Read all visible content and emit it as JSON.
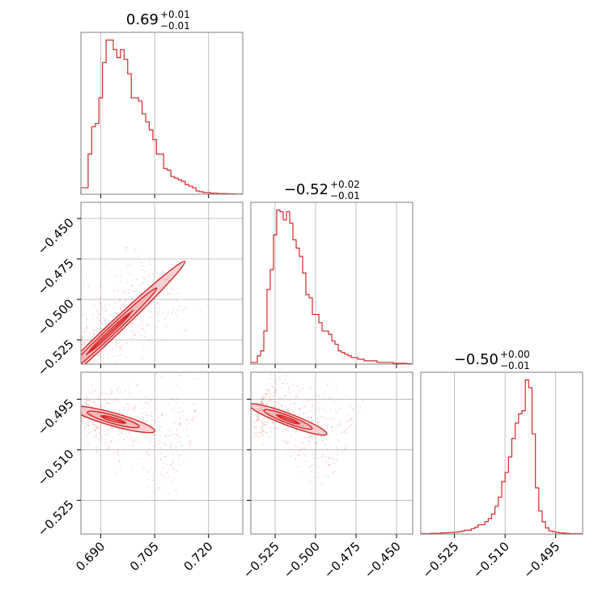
{
  "accent_color": "#d62728",
  "shade_color": "#f2a3a5",
  "chart_data": {
    "type": "corner",
    "grid": true,
    "parameters": [
      {
        "title": {
          "median": "0.69",
          "plus": "+0.01",
          "minus": "−0.01"
        },
        "range": [
          0.6845,
          0.7295
        ],
        "ticks": [
          0.69,
          0.705,
          0.72
        ],
        "tick_labels": [
          "0.690",
          "0.705",
          "0.720"
        ],
        "hist_bins": [
          0.6845,
          0.6855,
          0.6865,
          0.6875,
          0.6885,
          0.6895,
          0.6905,
          0.6915,
          0.6925,
          0.6935,
          0.6945,
          0.6955,
          0.6965,
          0.6975,
          0.6985,
          0.6995,
          0.7005,
          0.7015,
          0.7025,
          0.7035,
          0.7045,
          0.7055,
          0.7065,
          0.7075,
          0.7085,
          0.7095,
          0.7105,
          0.7115,
          0.7125,
          0.7135,
          0.7145,
          0.7155,
          0.7165,
          0.7175,
          0.7185,
          0.7195,
          0.7205,
          0.7215,
          0.7225,
          0.7235,
          0.7245,
          0.7255,
          0.7265,
          0.7275,
          0.7285,
          0.7295
        ],
        "hist_counts": [
          4,
          4,
          25,
          42,
          44,
          60,
          82,
          96,
          96,
          90,
          85,
          90,
          84,
          75,
          60,
          60,
          58,
          50,
          45,
          40,
          34,
          25,
          25,
          16,
          15,
          11,
          10,
          9,
          8,
          6,
          5,
          4,
          2,
          1.5,
          1,
          1,
          0.6,
          0.6,
          0.4,
          0.4,
          0.3,
          0.2,
          0.2,
          0.1,
          0.1
        ]
      },
      {
        "title": {
          "median": "−0.52",
          "plus": "+0.02",
          "minus": "−0.01"
        },
        "range": [
          -0.54,
          -0.44
        ],
        "ticks": [
          -0.45,
          -0.475,
          -0.5,
          -0.525
        ],
        "tick_labels": [
          "−0.450",
          "−0.475",
          "−0.500",
          "−0.525"
        ],
        "hist_bins": [
          -0.54,
          -0.538,
          -0.536,
          -0.534,
          -0.532,
          -0.53,
          -0.528,
          -0.526,
          -0.524,
          -0.522,
          -0.52,
          -0.518,
          -0.516,
          -0.514,
          -0.512,
          -0.51,
          -0.508,
          -0.506,
          -0.504,
          -0.502,
          -0.5,
          -0.498,
          -0.496,
          -0.494,
          -0.492,
          -0.49,
          -0.488,
          -0.486,
          -0.484,
          -0.482,
          -0.48,
          -0.478,
          -0.476,
          -0.474,
          -0.472,
          -0.47,
          -0.468,
          -0.466,
          -0.464,
          -0.462,
          -0.46,
          -0.458,
          -0.456,
          -0.454,
          -0.452,
          -0.45,
          -0.448,
          -0.446,
          -0.444,
          -0.442,
          -0.44
        ],
        "hist_counts": [
          1,
          1,
          5,
          8,
          20,
          45,
          57,
          78,
          93,
          92,
          87,
          92,
          85,
          75,
          70,
          65,
          55,
          42,
          40,
          30,
          30,
          25,
          20,
          20,
          18,
          14,
          12,
          8,
          7,
          6,
          5,
          4,
          4,
          3,
          3,
          2,
          2,
          2,
          2,
          1,
          1,
          1,
          1,
          1,
          0.5,
          0.5,
          0.5,
          0.5,
          0.3,
          0.2
        ]
      },
      {
        "title": {
          "median": "−0.50",
          "plus": "+0.00",
          "minus": "−0.01"
        },
        "range": [
          -0.535,
          -0.487
        ],
        "ticks": [
          -0.525,
          -0.51,
          -0.495
        ],
        "tick_labels": [
          "−0.525",
          "−0.510",
          "−0.495"
        ],
        "hist_bins": [
          -0.535,
          -0.534,
          -0.533,
          -0.532,
          -0.531,
          -0.53,
          -0.529,
          -0.528,
          -0.527,
          -0.526,
          -0.525,
          -0.524,
          -0.523,
          -0.522,
          -0.521,
          -0.52,
          -0.519,
          -0.518,
          -0.517,
          -0.516,
          -0.515,
          -0.514,
          -0.513,
          -0.512,
          -0.511,
          -0.51,
          -0.509,
          -0.508,
          -0.507,
          -0.506,
          -0.505,
          -0.504,
          -0.503,
          -0.502,
          -0.501,
          -0.5,
          -0.499,
          -0.498,
          -0.497,
          -0.496,
          -0.495,
          -0.494,
          -0.493,
          -0.492,
          -0.491,
          -0.49,
          -0.489,
          -0.488,
          -0.487
        ],
        "hist_counts": [
          0.3,
          0.3,
          0.3,
          0.5,
          0.5,
          0.5,
          0.8,
          0.8,
          1.0,
          1.0,
          1.2,
          1.5,
          2.0,
          2.5,
          2.5,
          3.5,
          4.5,
          6,
          6,
          8,
          10,
          13,
          18,
          24,
          34,
          40,
          50,
          62,
          72,
          78,
          80,
          100,
          95,
          65,
          30,
          15,
          8,
          4,
          2,
          1.5,
          1.0,
          0.8,
          0.6,
          0.5,
          0.3,
          0.3,
          0.3,
          0.3
        ]
      }
    ],
    "scatter_panels": [
      {
        "x_param": 0,
        "y_param": 1,
        "trend_start": [
          0.6845,
          -0.5355
        ],
        "trend_end": [
          0.7085,
          -0.485
        ],
        "contour_center": [
          0.6925,
          -0.5205
        ],
        "contour_half_length": 0.018,
        "contour_half_width": 0.0025,
        "contour_levels": [
          0.45,
          1.0,
          1.6
        ],
        "scatter_spread": 0.0015
      },
      {
        "x_param": 0,
        "y_param": 2,
        "trend_start": [
          0.685,
          -0.498
        ],
        "trend_end": [
          0.715,
          -0.507
        ],
        "contour_center": [
          0.6935,
          -0.501
        ],
        "contour_half_length": 0.0075,
        "contour_half_width": 0.0012,
        "contour_levels": [
          0.45,
          1.0,
          1.6
        ],
        "scatter_spread": 0.0009
      },
      {
        "x_param": 1,
        "y_param": 2,
        "trend_start": [
          -0.535,
          -0.497
        ],
        "trend_end": [
          -0.48,
          -0.507
        ],
        "contour_center": [
          -0.517,
          -0.501
        ],
        "contour_half_length": 0.016,
        "contour_half_width": 0.0011,
        "contour_levels": [
          0.45,
          1.0,
          1.6
        ],
        "scatter_spread": 0.0009
      }
    ]
  }
}
